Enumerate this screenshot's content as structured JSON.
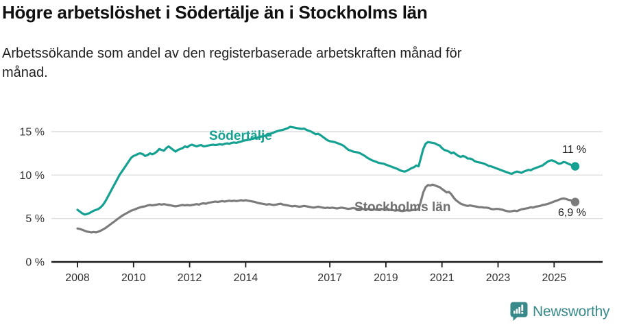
{
  "header": {
    "title": "Högre arbetslöshet i Södertälje än i Stockholms län",
    "subtitle": {
      "line1": "Arbetssökande som andel av den registerbaserade arbetskraften månad för",
      "line2": "månad."
    }
  },
  "branding": {
    "name": "Newsworthy",
    "color": "#37898a"
  },
  "colors": {
    "sodertalje_line": "#14a192",
    "stockholm_line": "#7b7b7b",
    "gridline": "#dcdcdc",
    "axis": "#1a1a1a",
    "tick_text": "#333333"
  },
  "chart_data": {
    "type": "line",
    "title": "Högre arbetslöshet i Södertälje än i Stockholms län",
    "subtitle": "Arbetssökande som andel av den registerbaserade arbetskraften månad för månad.",
    "x_unit": "month",
    "x_start_year": 2008,
    "x_end": "2025-10",
    "ylim": [
      0,
      16.6
    ],
    "grid": "horizontal",
    "legend_position": "inline-labels",
    "yticks": [
      {
        "value": 0,
        "label": "0 %"
      },
      {
        "value": 5,
        "label": "5 %"
      },
      {
        "value": 10,
        "label": "10 %"
      },
      {
        "value": 15,
        "label": "15 %"
      }
    ],
    "xticks": [
      {
        "value": 2008,
        "label": "2008"
      },
      {
        "value": 2010,
        "label": "2010"
      },
      {
        "value": 2012,
        "label": "2012"
      },
      {
        "value": 2014,
        "label": "2014"
      },
      {
        "value": 2017,
        "label": "2017"
      },
      {
        "value": 2019,
        "label": "2019"
      },
      {
        "value": 2021,
        "label": "2021"
      },
      {
        "value": 2023,
        "label": "2023"
      },
      {
        "value": 2025,
        "label": "2025"
      }
    ],
    "series": [
      {
        "id": "sodertalje",
        "name": "Södertälje",
        "color": "#14a192",
        "end_label": "11 %",
        "end_value": 11.0,
        "values": [
          6.0,
          5.8,
          5.6,
          5.45,
          5.5,
          5.6,
          5.75,
          5.9,
          6.0,
          6.1,
          6.3,
          6.6,
          7.0,
          7.5,
          8.0,
          8.5,
          9.0,
          9.5,
          10.0,
          10.4,
          10.8,
          11.2,
          11.6,
          12.0,
          12.2,
          12.3,
          12.45,
          12.5,
          12.4,
          12.2,
          12.3,
          12.5,
          12.4,
          12.5,
          12.7,
          13.0,
          12.9,
          12.8,
          13.1,
          13.3,
          13.1,
          12.9,
          12.7,
          12.9,
          13.0,
          13.1,
          13.3,
          13.2,
          13.4,
          13.5,
          13.4,
          13.3,
          13.4,
          13.45,
          13.3,
          13.35,
          13.4,
          13.45,
          13.5,
          13.45,
          13.5,
          13.55,
          13.5,
          13.6,
          13.65,
          13.6,
          13.7,
          13.75,
          13.7,
          13.8,
          13.85,
          13.95,
          14.0,
          14.05,
          14.1,
          14.2,
          14.25,
          14.3,
          14.4,
          14.45,
          14.5,
          14.6,
          14.7,
          14.8,
          14.9,
          15.0,
          15.1,
          15.15,
          15.2,
          15.3,
          15.4,
          15.55,
          15.5,
          15.45,
          15.4,
          15.35,
          15.3,
          15.35,
          15.2,
          15.1,
          15.0,
          14.85,
          14.7,
          14.75,
          14.6,
          14.4,
          14.2,
          14.0,
          13.9,
          13.85,
          13.8,
          13.7,
          13.6,
          13.5,
          13.35,
          13.1,
          12.9,
          12.8,
          12.7,
          12.65,
          12.6,
          12.5,
          12.35,
          12.2,
          12.0,
          11.85,
          11.7,
          11.6,
          11.5,
          11.4,
          11.35,
          11.3,
          11.2,
          11.1,
          11.0,
          10.9,
          10.8,
          10.7,
          10.55,
          10.45,
          10.4,
          10.5,
          10.65,
          10.8,
          10.9,
          11.1,
          11.0,
          12.0,
          13.0,
          13.6,
          13.8,
          13.75,
          13.7,
          13.65,
          13.5,
          13.4,
          13.1,
          12.9,
          12.8,
          12.7,
          12.5,
          12.6,
          12.4,
          12.2,
          12.1,
          12.2,
          12.1,
          11.9,
          11.9,
          11.8,
          11.6,
          11.5,
          11.45,
          11.4,
          11.3,
          11.2,
          11.05,
          11.0,
          10.9,
          10.8,
          10.7,
          10.6,
          10.5,
          10.4,
          10.3,
          10.2,
          10.15,
          10.3,
          10.4,
          10.35,
          10.25,
          10.4,
          10.5,
          10.6,
          10.55,
          10.7,
          10.8,
          10.9,
          11.0,
          11.1,
          11.3,
          11.5,
          11.65,
          11.7,
          11.6,
          11.45,
          11.3,
          11.35,
          11.5,
          11.45,
          11.3,
          11.2,
          11.05,
          11.0
        ]
      },
      {
        "id": "stockholms-lan",
        "name": "Stockholms län",
        "color": "#7b7b7b",
        "end_label": "6,9 %",
        "end_value": 6.9,
        "values": [
          3.85,
          3.8,
          3.7,
          3.6,
          3.5,
          3.45,
          3.4,
          3.45,
          3.4,
          3.5,
          3.6,
          3.75,
          3.9,
          4.1,
          4.3,
          4.5,
          4.7,
          4.9,
          5.1,
          5.3,
          5.45,
          5.6,
          5.75,
          5.9,
          6.0,
          6.1,
          6.2,
          6.3,
          6.35,
          6.4,
          6.5,
          6.55,
          6.5,
          6.55,
          6.6,
          6.65,
          6.6,
          6.65,
          6.6,
          6.55,
          6.5,
          6.45,
          6.4,
          6.45,
          6.5,
          6.55,
          6.5,
          6.55,
          6.5,
          6.55,
          6.6,
          6.65,
          6.6,
          6.7,
          6.75,
          6.7,
          6.8,
          6.85,
          6.9,
          6.95,
          6.9,
          6.95,
          7.0,
          6.95,
          7.0,
          7.05,
          7.0,
          7.05,
          7.0,
          7.05,
          7.1,
          7.05,
          7.1,
          7.05,
          7.0,
          6.95,
          6.9,
          6.8,
          6.75,
          6.7,
          6.65,
          6.6,
          6.65,
          6.6,
          6.55,
          6.6,
          6.65,
          6.7,
          6.6,
          6.55,
          6.5,
          6.45,
          6.4,
          6.45,
          6.4,
          6.35,
          6.4,
          6.45,
          6.4,
          6.35,
          6.3,
          6.25,
          6.3,
          6.35,
          6.3,
          6.25,
          6.2,
          6.25,
          6.2,
          6.25,
          6.2,
          6.15,
          6.2,
          6.25,
          6.2,
          6.15,
          6.1,
          6.15,
          6.2,
          6.15,
          6.1,
          6.15,
          6.1,
          6.05,
          6.1,
          6.05,
          6.0,
          6.05,
          6.0,
          6.05,
          6.1,
          6.05,
          6.0,
          6.05,
          6.0,
          5.95,
          5.9,
          5.95,
          5.9,
          5.85,
          5.9,
          5.95,
          5.9,
          5.95,
          6.0,
          6.0,
          6.1,
          7.0,
          8.0,
          8.6,
          8.85,
          8.8,
          8.9,
          8.8,
          8.7,
          8.6,
          8.4,
          8.2,
          8.0,
          8.05,
          7.8,
          7.4,
          7.1,
          6.9,
          6.7,
          6.6,
          6.5,
          6.45,
          6.5,
          6.45,
          6.4,
          6.35,
          6.3,
          6.3,
          6.25,
          6.25,
          6.2,
          6.1,
          6.05,
          6.1,
          6.1,
          6.05,
          6.0,
          5.9,
          5.85,
          5.8,
          5.85,
          5.9,
          5.85,
          5.95,
          6.05,
          6.1,
          6.15,
          6.2,
          6.3,
          6.25,
          6.35,
          6.4,
          6.45,
          6.55,
          6.6,
          6.65,
          6.75,
          6.85,
          6.95,
          7.05,
          7.15,
          7.25,
          7.3,
          7.25,
          7.15,
          7.1,
          7.0,
          6.9
        ]
      }
    ]
  }
}
